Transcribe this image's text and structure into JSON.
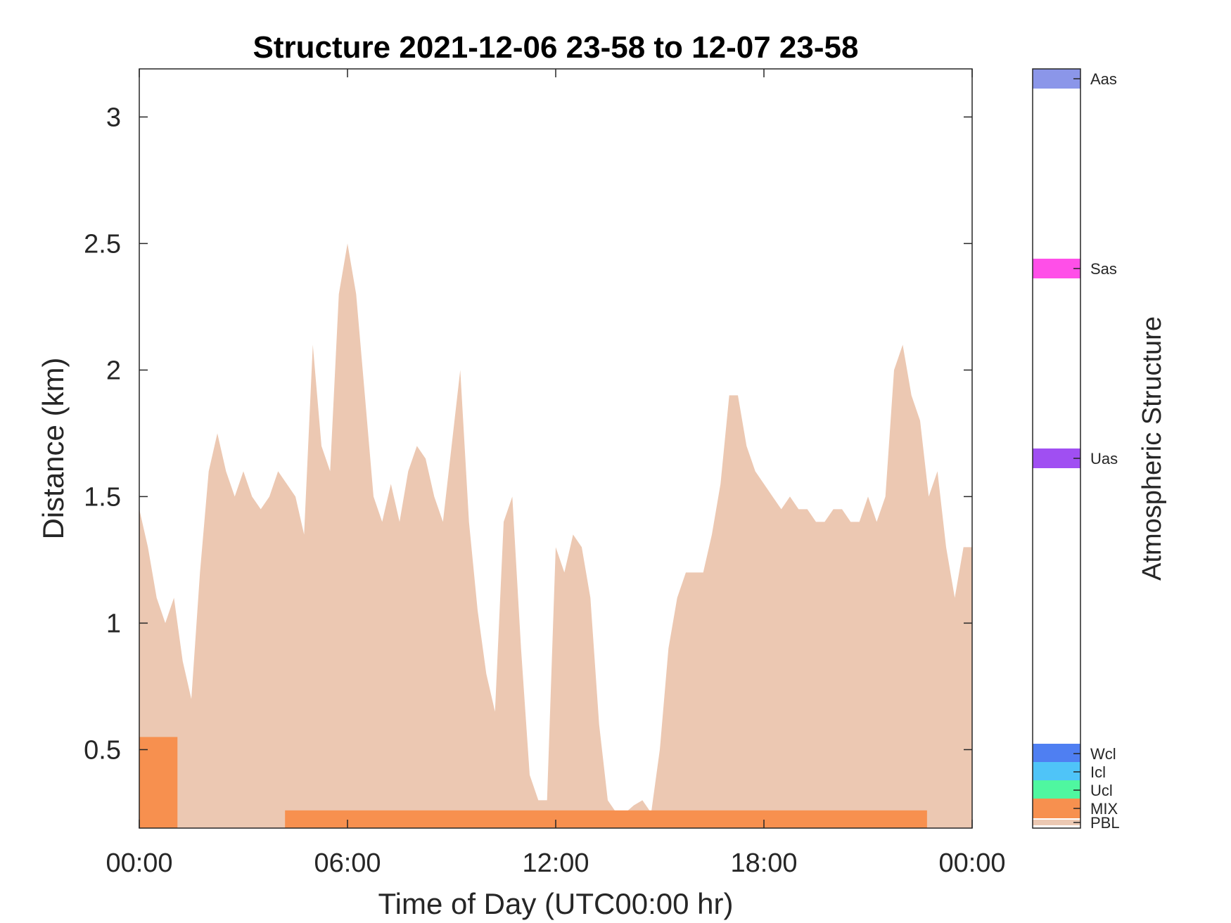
{
  "chart_data": {
    "type": "heatmap",
    "title": "Structure 2021-12-06 23-58 to 12-07 23-58",
    "xlabel": "Time of Day (UTC00:00 hr)",
    "ylabel": "Distance (km)",
    "x_ticks": [
      "00:00",
      "06:00",
      "12:00",
      "18:00",
      "00:00"
    ],
    "x_tick_hours": [
      0,
      6,
      12,
      18,
      24
    ],
    "xlim_hours": [
      0,
      24
    ],
    "y_ticks": [
      0.5,
      1,
      1.5,
      2,
      2.5,
      3
    ],
    "ylim_km": [
      0.19,
      3.19
    ],
    "colorbar": {
      "title": "Atmospheric Structure",
      "categories": [
        {
          "label": "Aas",
          "color": "#8b96e9"
        },
        {
          "label": "Sas",
          "color": "#ff4fe8"
        },
        {
          "label": "Uas",
          "color": "#a04ff2"
        },
        {
          "label": "Wcl",
          "color": "#4f7ff2"
        },
        {
          "label": "Icl",
          "color": "#4fc4f8"
        },
        {
          "label": "Ucl",
          "color": "#4ff7a0"
        },
        {
          "label": "MIX",
          "color": "#f7904f"
        },
        {
          "label": "PBL",
          "color": "#ecc8b2"
        }
      ]
    },
    "pbl_top_km": [
      [
        0,
        1.45
      ],
      [
        0.25,
        1.3
      ],
      [
        0.5,
        1.1
      ],
      [
        0.75,
        1.0
      ],
      [
        1.0,
        1.1
      ],
      [
        1.25,
        0.85
      ],
      [
        1.5,
        0.7
      ],
      [
        1.75,
        1.2
      ],
      [
        2.0,
        1.6
      ],
      [
        2.25,
        1.75
      ],
      [
        2.5,
        1.6
      ],
      [
        2.75,
        1.5
      ],
      [
        3.0,
        1.6
      ],
      [
        3.25,
        1.5
      ],
      [
        3.5,
        1.45
      ],
      [
        3.75,
        1.5
      ],
      [
        4.0,
        1.6
      ],
      [
        4.25,
        1.55
      ],
      [
        4.5,
        1.5
      ],
      [
        4.75,
        1.35
      ],
      [
        5.0,
        2.1
      ],
      [
        5.25,
        1.7
      ],
      [
        5.5,
        1.6
      ],
      [
        5.75,
        2.3
      ],
      [
        6.0,
        2.5
      ],
      [
        6.25,
        2.3
      ],
      [
        6.5,
        1.9
      ],
      [
        6.75,
        1.5
      ],
      [
        7.0,
        1.4
      ],
      [
        7.25,
        1.55
      ],
      [
        7.5,
        1.4
      ],
      [
        7.75,
        1.6
      ],
      [
        8.0,
        1.7
      ],
      [
        8.25,
        1.65
      ],
      [
        8.5,
        1.5
      ],
      [
        8.75,
        1.4
      ],
      [
        9.0,
        1.7
      ],
      [
        9.25,
        2.0
      ],
      [
        9.5,
        1.4
      ],
      [
        9.75,
        1.05
      ],
      [
        10.0,
        0.8
      ],
      [
        10.25,
        0.65
      ],
      [
        10.5,
        1.4
      ],
      [
        10.75,
        1.5
      ],
      [
        11.0,
        0.9
      ],
      [
        11.25,
        0.4
      ],
      [
        11.5,
        0.3
      ],
      [
        11.75,
        0.3
      ],
      [
        12.0,
        1.3
      ],
      [
        12.25,
        1.2
      ],
      [
        12.5,
        1.35
      ],
      [
        12.75,
        1.3
      ],
      [
        13.0,
        1.1
      ],
      [
        13.25,
        0.6
      ],
      [
        13.5,
        0.3
      ],
      [
        13.75,
        0.25
      ],
      [
        14.0,
        0.25
      ],
      [
        14.25,
        0.28
      ],
      [
        14.5,
        0.3
      ],
      [
        14.75,
        0.25
      ],
      [
        15.0,
        0.5
      ],
      [
        15.25,
        0.9
      ],
      [
        15.5,
        1.1
      ],
      [
        15.75,
        1.2
      ],
      [
        16.0,
        1.2
      ],
      [
        16.25,
        1.2
      ],
      [
        16.5,
        1.35
      ],
      [
        16.75,
        1.55
      ],
      [
        17.0,
        1.9
      ],
      [
        17.25,
        1.9
      ],
      [
        17.5,
        1.7
      ],
      [
        17.75,
        1.6
      ],
      [
        18.0,
        1.55
      ],
      [
        18.25,
        1.5
      ],
      [
        18.5,
        1.45
      ],
      [
        18.75,
        1.5
      ],
      [
        19.0,
        1.45
      ],
      [
        19.25,
        1.45
      ],
      [
        19.5,
        1.4
      ],
      [
        19.75,
        1.4
      ],
      [
        20.0,
        1.45
      ],
      [
        20.25,
        1.45
      ],
      [
        20.5,
        1.4
      ],
      [
        20.75,
        1.4
      ],
      [
        21.0,
        1.5
      ],
      [
        21.25,
        1.4
      ],
      [
        21.5,
        1.5
      ],
      [
        21.75,
        2.0
      ],
      [
        22.0,
        2.1
      ],
      [
        22.25,
        1.9
      ],
      [
        22.5,
        1.8
      ],
      [
        22.75,
        1.5
      ],
      [
        23.0,
        1.6
      ],
      [
        23.25,
        1.3
      ],
      [
        23.5,
        1.1
      ],
      [
        23.75,
        1.3
      ],
      [
        24.0,
        1.3
      ]
    ]
  }
}
